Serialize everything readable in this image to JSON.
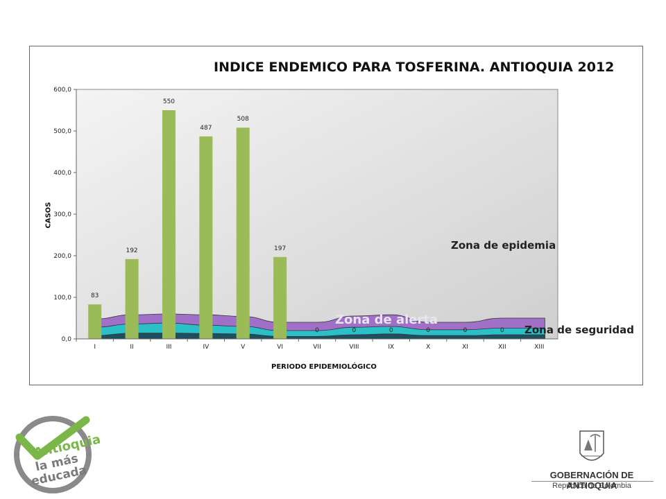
{
  "chart_data": {
    "type": "bar",
    "title": "INDICE ENDEMICO PARA TOSFERINA.  ANTIOQUIA 2012",
    "xlabel": "PERIODO EPIDEMIOLÓGICO",
    "ylabel": "CASOS",
    "ylim": [
      0,
      600
    ],
    "yticks": [
      "0,0",
      "100,0",
      "200,0",
      "300,0",
      "400,0",
      "500,0",
      "600,0"
    ],
    "categories": [
      "I",
      "II",
      "III",
      "IV",
      "V",
      "VI",
      "VII",
      "VIII",
      "IX",
      "X",
      "XI",
      "XII",
      "XIII"
    ],
    "bars": {
      "values": [
        83,
        192,
        550,
        487,
        508,
        197,
        0,
        0,
        0,
        0,
        0,
        0,
        null
      ],
      "labels": [
        "83",
        "192",
        "550",
        "487",
        "508",
        "197",
        "0",
        "0",
        "0",
        "0",
        "0",
        "0",
        ""
      ],
      "color": "#9bbb59"
    },
    "zones": [
      {
        "values": [
          8,
          14,
          14,
          13,
          12,
          6,
          6,
          10,
          12,
          8,
          8,
          10,
          10
        ],
        "color": "#1f4e5f"
      },
      {
        "values": [
          28,
          36,
          38,
          33,
          30,
          20,
          20,
          28,
          30,
          22,
          22,
          26,
          26
        ],
        "color": "#2bbfc7"
      },
      {
        "values": [
          48,
          58,
          60,
          58,
          54,
          40,
          40,
          55,
          58,
          40,
          40,
          50,
          50
        ],
        "color": "#a070c8"
      }
    ],
    "grid": false,
    "plot_background": "#e8e8e8"
  },
  "zones_text": {
    "epidemia": "Zona de epidemia",
    "alerta": "Zona de alerta",
    "seguridad": "Zona de seguridad"
  },
  "logos": {
    "antioquia": "Antioquia la más educada",
    "gobernacion": "GOBERNACIÓN DE ANTIOQUIA",
    "republica": "República de Colombia"
  },
  "colors": {
    "accent_green": "#7ab648",
    "accent_gray": "#8a8a8a"
  }
}
